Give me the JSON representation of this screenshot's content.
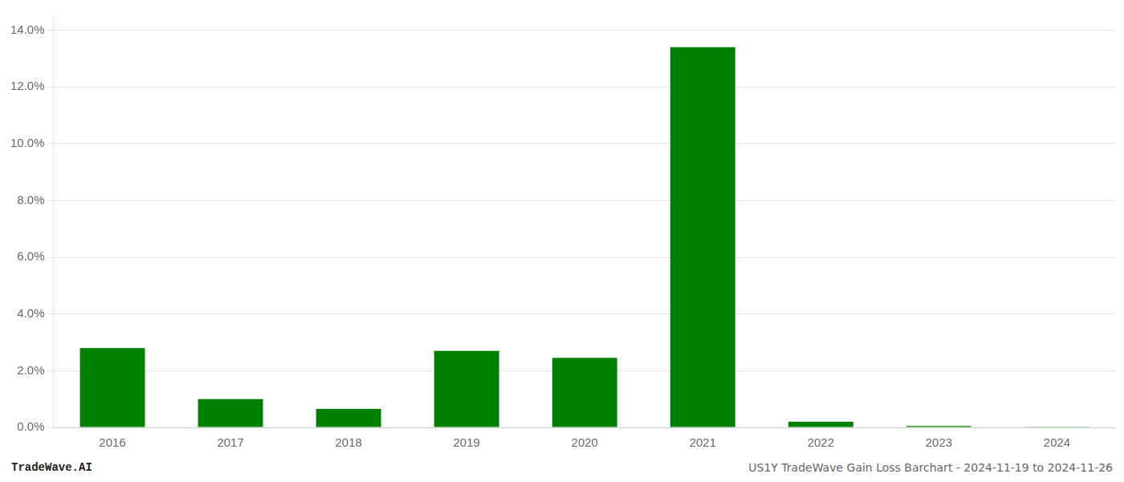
{
  "chart_data": {
    "type": "bar",
    "categories": [
      "2016",
      "2017",
      "2018",
      "2019",
      "2020",
      "2021",
      "2022",
      "2023",
      "2024"
    ],
    "values": [
      0.028,
      0.01,
      0.0065,
      0.027,
      0.0245,
      0.134,
      0.002,
      0.0005,
      0.0002
    ],
    "color": "#008000",
    "ylim": [
      0,
      0.145
    ],
    "yticks": [
      {
        "value": 0.0,
        "label": "0.0%"
      },
      {
        "value": 0.02,
        "label": "2.0%"
      },
      {
        "value": 0.04,
        "label": "4.0%"
      },
      {
        "value": 0.06,
        "label": "6.0%"
      },
      {
        "value": 0.08,
        "label": "8.0%"
      },
      {
        "value": 0.1,
        "label": "10.0%"
      },
      {
        "value": 0.12,
        "label": "12.0%"
      },
      {
        "value": 0.14,
        "label": "14.0%"
      }
    ],
    "grid": true,
    "annotations": [
      "TradeWave.AI",
      "US1Y TradeWave Gain Loss Barchart - 2024-11-19 to 2024-11-26"
    ]
  }
}
